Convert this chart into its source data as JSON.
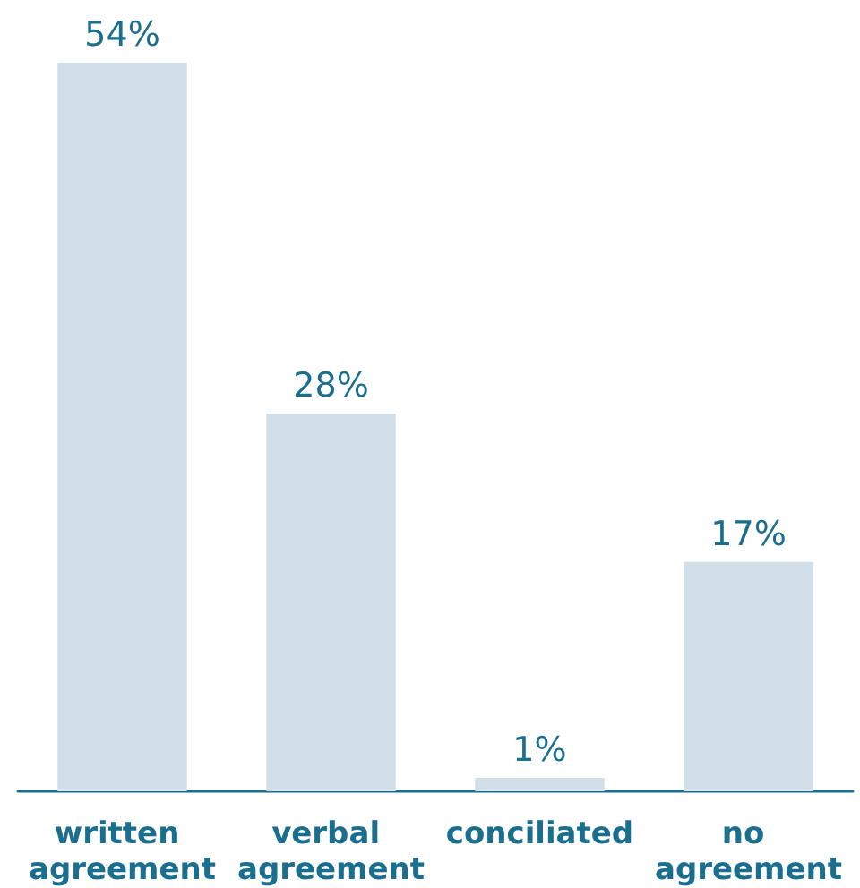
{
  "chart_data": {
    "type": "bar",
    "categories": [
      "written agreement",
      "verbal agreement",
      "conciliated",
      "no agreement"
    ],
    "values": [
      54,
      28,
      1,
      17
    ],
    "value_labels": [
      "54%",
      "28%",
      "1%",
      "17%"
    ],
    "color": "#d1e0e8"
  }
}
